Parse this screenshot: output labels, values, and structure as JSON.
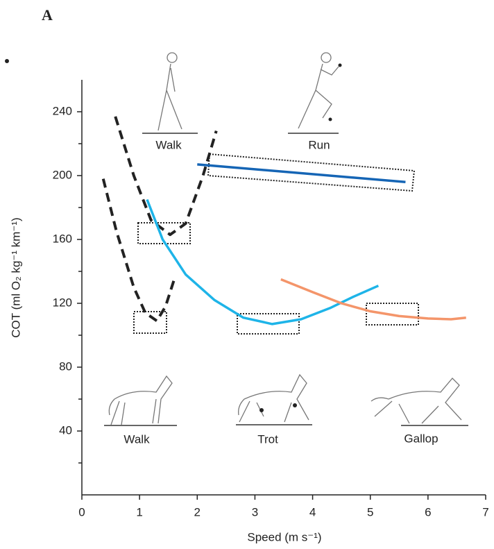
{
  "panel_label": "A",
  "chart_data": {
    "type": "line",
    "xlabel": "Speed  (m s⁻¹)",
    "ylabel": "COT (ml O₂ kg⁻¹ km⁻¹)",
    "xlim": [
      0,
      7
    ],
    "ylim": [
      0,
      260
    ],
    "xticks": [
      0,
      1,
      2,
      3,
      4,
      5,
      6,
      7
    ],
    "yticks": [
      40,
      80,
      120,
      160,
      200,
      240
    ],
    "yminor_ticks": [
      20,
      60,
      100,
      140,
      180,
      220
    ],
    "annotations": [
      "Walk",
      "Run",
      "Walk",
      "Trot",
      "Gallop"
    ],
    "series": [
      {
        "color": "#222222",
        "dashed": true,
        "x": [
          0.58,
          0.9,
          1.2,
          1.53,
          1.8,
          2.1,
          2.33
        ],
        "values": [
          237,
          200,
          172,
          163,
          170,
          200,
          228
        ]
      },
      {
        "color": "#222222",
        "dashed": true,
        "x": [
          0.37,
          0.6,
          0.9,
          1.1,
          1.3,
          1.45,
          1.61
        ],
        "values": [
          198,
          165,
          130,
          114,
          109,
          118,
          136
        ]
      },
      {
        "color": "#1565b5",
        "dashed": false,
        "x": [
          2.0,
          5.61
        ],
        "values": [
          207,
          196
        ]
      },
      {
        "color": "#1eb4e8",
        "dashed": false,
        "x": [
          1.13,
          1.4,
          1.8,
          2.3,
          2.8,
          3.3,
          3.8,
          4.3,
          4.7,
          5.14
        ],
        "values": [
          185,
          160,
          138,
          122,
          111,
          107,
          110,
          117,
          124,
          131
        ]
      },
      {
        "color": "#f4956a",
        "dashed": false,
        "x": [
          3.45,
          4.0,
          4.5,
          5.0,
          5.5,
          6.0,
          6.4,
          6.66
        ],
        "values": [
          135,
          127,
          120,
          115,
          112,
          110.5,
          110,
          111
        ]
      }
    ]
  }
}
